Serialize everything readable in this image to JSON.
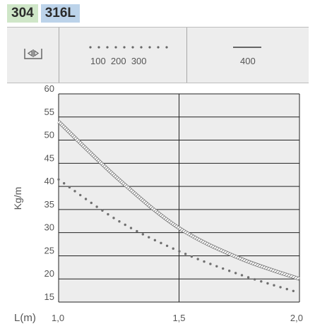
{
  "badges": {
    "grade_a": "304",
    "grade_b": "316L"
  },
  "legend": {
    "icon": "width-arrows-icon",
    "dotted_label": "100  200  300",
    "solid_label": "400"
  },
  "chart_data": {
    "type": "line",
    "title": "",
    "xlabel": "L(m)",
    "ylabel": "Kg/m",
    "xlim": [
      1.0,
      2.0
    ],
    "ylim": [
      15,
      60
    ],
    "xticks": [
      1.0,
      1.5,
      2.0
    ],
    "xtick_labels": [
      "1,0",
      "1,5",
      "2,0"
    ],
    "yticks": [
      15,
      20,
      25,
      30,
      35,
      40,
      45,
      50,
      55,
      60
    ],
    "ytick_labels": [
      "15",
      "20",
      "25",
      "30",
      "35",
      "40",
      "45",
      "50",
      "55",
      "60"
    ],
    "grid": true,
    "series": [
      {
        "style": "hatched",
        "x": [
          1.0,
          1.25,
          1.5,
          1.75,
          2.0
        ],
        "y": [
          54,
          41.5,
          31,
          24.5,
          20
        ]
      },
      {
        "style": "dotted",
        "x": [
          1.0,
          1.25,
          1.5,
          1.75,
          2.0
        ],
        "y": [
          41.5,
          32.5,
          26,
          21,
          17
        ]
      }
    ],
    "colors": {
      "line": "#777777",
      "grid": "#222222",
      "background": "#ededed"
    }
  }
}
